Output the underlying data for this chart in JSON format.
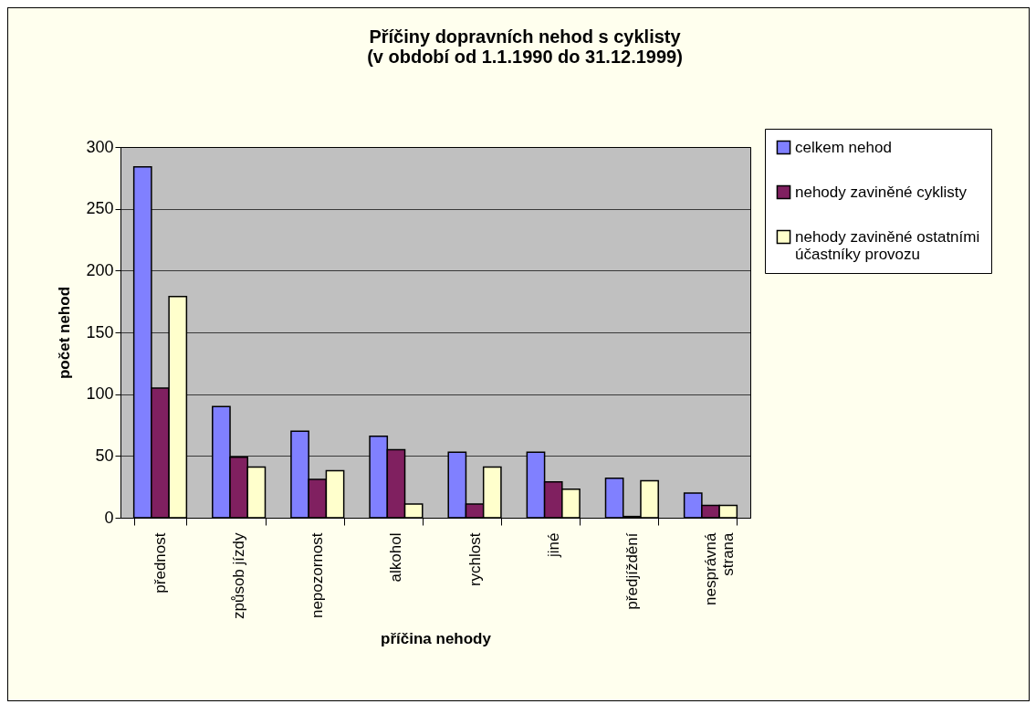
{
  "chart_data": {
    "type": "bar",
    "title": "Příčiny dopravních nehod s cyklisty\n(v období od 1.1.1990 do 31.12.1999)",
    "xlabel": "příčina nehody",
    "ylabel": "počet nehod",
    "categories": [
      "přednost",
      "způsob jízdy",
      "nepozornost",
      "alkohol",
      "rychlost",
      "jiné",
      "předjíždění",
      "nesprávná\nstrana"
    ],
    "series": [
      {
        "name": "celkem nehod",
        "color": "#8080ff",
        "values": [
          284,
          90,
          70,
          66,
          53,
          53,
          32,
          20
        ]
      },
      {
        "name": "nehody zaviněné cyklisty",
        "color": "#802060",
        "values": [
          105,
          49,
          31,
          55,
          11,
          29,
          1,
          10
        ]
      },
      {
        "name": "nehody zaviněné ostatními\núčastníky provozu",
        "color": "#ffffcc",
        "values": [
          179,
          41,
          38,
          11,
          41,
          23,
          30,
          10
        ]
      }
    ],
    "ylim": [
      0,
      300
    ],
    "yticks": [
      0,
      50,
      100,
      150,
      200,
      250,
      300
    ],
    "grid": "y",
    "legend": "right"
  }
}
